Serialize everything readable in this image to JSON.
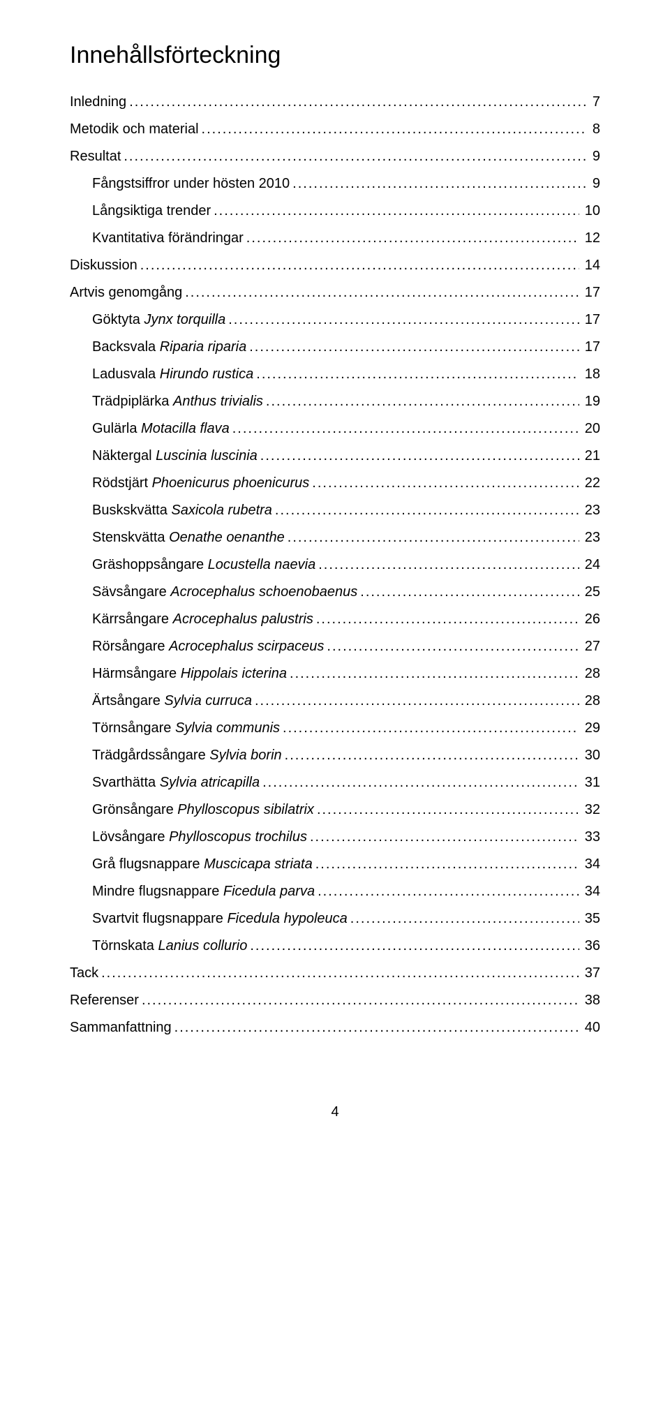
{
  "title": "Innehållsförteckning",
  "footer_page_number": "4",
  "entries": [
    {
      "label": "Inledning",
      "page": "7",
      "indent": 0,
      "italic_part": ""
    },
    {
      "label": "Metodik och material",
      "page": "8",
      "indent": 0,
      "italic_part": ""
    },
    {
      "label": "Resultat",
      "page": "9",
      "indent": 0,
      "italic_part": ""
    },
    {
      "label": "Fångstsiffror under hösten 2010",
      "page": "9",
      "indent": 1,
      "italic_part": ""
    },
    {
      "label": "Långsiktiga trender",
      "page": "10",
      "indent": 1,
      "italic_part": ""
    },
    {
      "label": "Kvantitativa förändringar",
      "page": "12",
      "indent": 1,
      "italic_part": ""
    },
    {
      "label": "Diskussion",
      "page": "14",
      "indent": 0,
      "italic_part": ""
    },
    {
      "label": "Artvis genomgång",
      "page": "17",
      "indent": 0,
      "italic_part": ""
    },
    {
      "label": "Göktyta ",
      "page": "17",
      "indent": 1,
      "italic_part": "Jynx torquilla"
    },
    {
      "label": "Backsvala ",
      "page": "17",
      "indent": 1,
      "italic_part": "Riparia riparia"
    },
    {
      "label": "Ladusvala ",
      "page": "18",
      "indent": 1,
      "italic_part": "Hirundo rustica"
    },
    {
      "label": "Trädpiplärka ",
      "page": "19",
      "indent": 1,
      "italic_part": "Anthus trivialis"
    },
    {
      "label": "Gulärla ",
      "page": "20",
      "indent": 1,
      "italic_part": "Motacilla flava"
    },
    {
      "label": "Näktergal ",
      "page": "21",
      "indent": 1,
      "italic_part": "Luscinia luscinia"
    },
    {
      "label": "Rödstjärt ",
      "page": "22",
      "indent": 1,
      "italic_part": "Phoenicurus phoenicurus"
    },
    {
      "label": "Buskskvätta ",
      "page": "23",
      "indent": 1,
      "italic_part": "Saxicola rubetra"
    },
    {
      "label": "Stenskvätta ",
      "page": "23",
      "indent": 1,
      "italic_part": "Oenathe oenanthe"
    },
    {
      "label": "Gräshoppsångare ",
      "page": "24",
      "indent": 1,
      "italic_part": "Locustella naevia"
    },
    {
      "label": "Sävsångare ",
      "page": "25",
      "indent": 1,
      "italic_part": "Acrocephalus schoenobaenus"
    },
    {
      "label": "Kärrsångare ",
      "page": "26",
      "indent": 1,
      "italic_part": "Acrocephalus palustris"
    },
    {
      "label": "Rörsångare ",
      "page": "27",
      "indent": 1,
      "italic_part": "Acrocephalus scirpaceus"
    },
    {
      "label": "Härmsångare ",
      "page": "28",
      "indent": 1,
      "italic_part": "Hippolais icterina"
    },
    {
      "label": "Ärtsångare ",
      "page": "28",
      "indent": 1,
      "italic_part": "Sylvia curruca"
    },
    {
      "label": "Törnsångare ",
      "page": "29",
      "indent": 1,
      "italic_part": "Sylvia communis"
    },
    {
      "label": "Trädgårdssångare ",
      "page": "30",
      "indent": 1,
      "italic_part": "Sylvia borin"
    },
    {
      "label": "Svarthätta ",
      "page": "31",
      "indent": 1,
      "italic_part": "Sylvia atricapilla"
    },
    {
      "label": "Grönsångare ",
      "page": "32",
      "indent": 1,
      "italic_part": "Phylloscopus sibilatrix"
    },
    {
      "label": "Lövsångare ",
      "page": "33",
      "indent": 1,
      "italic_part": "Phylloscopus trochilus"
    },
    {
      "label": "Grå flugsnappare ",
      "page": "34",
      "indent": 1,
      "italic_part": "Muscicapa striata"
    },
    {
      "label": "Mindre flugsnappare ",
      "page": "34",
      "indent": 1,
      "italic_part": "Ficedula parva"
    },
    {
      "label": "Svartvit flugsnappare ",
      "page": "35",
      "indent": 1,
      "italic_part": "Ficedula hypoleuca"
    },
    {
      "label": "Törnskata ",
      "page": "36",
      "indent": 1,
      "italic_part": "Lanius collurio"
    },
    {
      "label": "Tack",
      "page": "37",
      "indent": 0,
      "italic_part": ""
    },
    {
      "label": "Referenser",
      "page": "38",
      "indent": 0,
      "italic_part": ""
    },
    {
      "label": "Sammanfattning",
      "page": "40",
      "indent": 0,
      "italic_part": ""
    }
  ]
}
